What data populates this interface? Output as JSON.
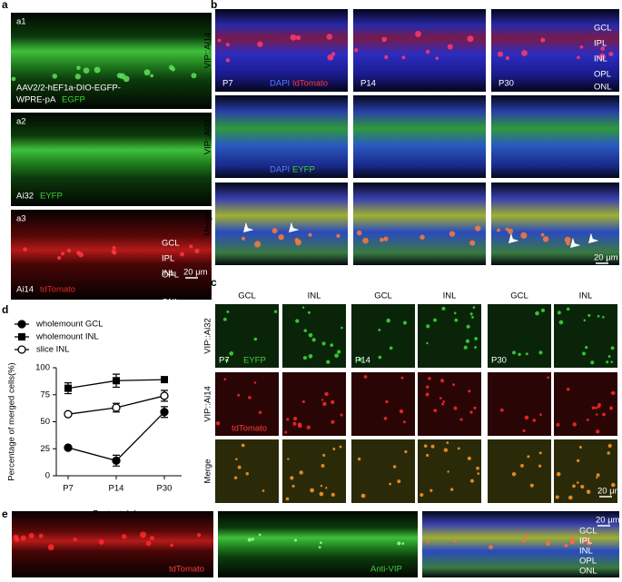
{
  "panel_a": {
    "letter": "a",
    "a1": {
      "label": "a1",
      "construct": [
        "AAV2/2-hEF1a-DIO-EGFP-",
        "WPRE-pA"
      ],
      "reporter": "EGFP"
    },
    "a2": {
      "label": "a2",
      "line": "Ai32",
      "reporter": "EYFP"
    },
    "a3": {
      "label": "a3",
      "layers": [
        "GCL",
        "IPL",
        "INL",
        "OPL",
        "ONL"
      ],
      "line": "Ai14",
      "reporter": "tdTomato",
      "scale": "20 μm"
    }
  },
  "panel_b": {
    "letter": "b",
    "rows": [
      "VIP::Ai14",
      "VIP::Ai32",
      "Merge"
    ],
    "ages": [
      "P7",
      "P14",
      "P30"
    ],
    "stains_row1": [
      "DAPI",
      "tdTomato"
    ],
    "stains_row2": [
      "DAPI",
      "EYFP"
    ],
    "layers": [
      "GCL",
      "IPL",
      "INL",
      "OPL",
      "ONL"
    ],
    "scale": "20 μm"
  },
  "panel_c": {
    "letter": "c",
    "columns": [
      "GCL",
      "INL",
      "GCL",
      "INL",
      "GCL",
      "INL"
    ],
    "rows": [
      "VIP::Ai32",
      "VIP::Ai14",
      "Merge"
    ],
    "ages": [
      "P7",
      "P14",
      "P30"
    ],
    "reporter_row1": "EYFP",
    "reporter_row2": "tdTomato",
    "scale": "20 μm"
  },
  "panel_d": {
    "letter": "d"
  },
  "chart_data": {
    "type": "line",
    "xlabel": "Postnatal day",
    "ylabel": "Percentage of merged cells(%)",
    "categories": [
      "P7",
      "P14",
      "P30"
    ],
    "ylim": [
      0,
      100
    ],
    "yticks": [
      0,
      25,
      50,
      75,
      100
    ],
    "series": [
      {
        "name": "wholemount GCL",
        "marker": "filled-circle",
        "color": "#000000",
        "values": [
          26,
          14,
          59
        ],
        "errors": [
          1,
          5,
          5
        ]
      },
      {
        "name": "wholemount INL",
        "marker": "filled-square",
        "color": "#000000",
        "values": [
          81,
          88,
          89
        ],
        "errors": [
          5,
          6,
          1
        ]
      },
      {
        "name": "slice INL",
        "marker": "open-circle",
        "color": "#000000",
        "values": [
          57,
          63,
          74
        ],
        "errors": [
          1,
          4,
          5
        ]
      }
    ]
  },
  "panel_e": {
    "letter": "e",
    "labels": [
      "tdTomato",
      "Anti-VIP"
    ],
    "layers": [
      "GCL",
      "IPL",
      "INL",
      "OPL",
      "ONL"
    ],
    "scale": "20 μm"
  }
}
